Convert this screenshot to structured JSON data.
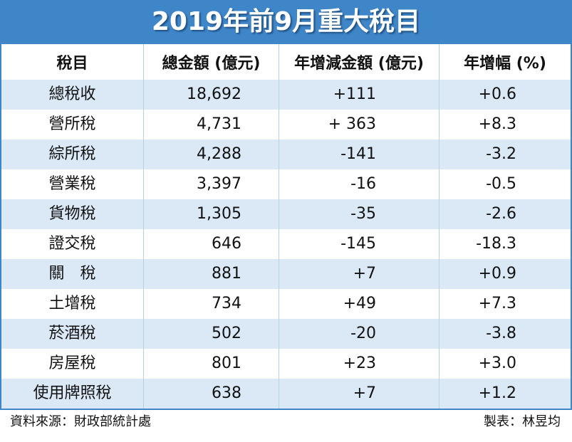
{
  "header": {
    "title": "2019年前9月重大稅目"
  },
  "table": {
    "columns": [
      "稅目",
      "總金額 (億元)",
      "年增減金額 (億元)",
      "年增幅 (%)"
    ],
    "rows": [
      [
        "總稅收",
        "18,692",
        "+111",
        "+0.6"
      ],
      [
        "營所稅",
        "4,731",
        "+ 363",
        "+8.3"
      ],
      [
        "綜所稅",
        "4,288",
        "-141",
        "-3.2"
      ],
      [
        "營業稅",
        "3,397",
        "-16",
        "-0.5"
      ],
      [
        "貨物稅",
        "1,305",
        "-35",
        "-2.6"
      ],
      [
        "證交稅",
        "646",
        "-145",
        "-18.3"
      ],
      [
        "關　稅",
        "881",
        "+7",
        "+0.9"
      ],
      [
        "土增稅",
        "734",
        "+49",
        "+7.3"
      ],
      [
        "菸酒稅",
        "502",
        "-20",
        "-3.8"
      ],
      [
        "房屋稅",
        "801",
        "+23",
        "+3.0"
      ],
      [
        "使用牌照稅",
        "638",
        "+7",
        "+1.2"
      ]
    ]
  },
  "footer": {
    "source": "資料來源：財政部統計處",
    "credit": "製表：林昱均"
  }
}
